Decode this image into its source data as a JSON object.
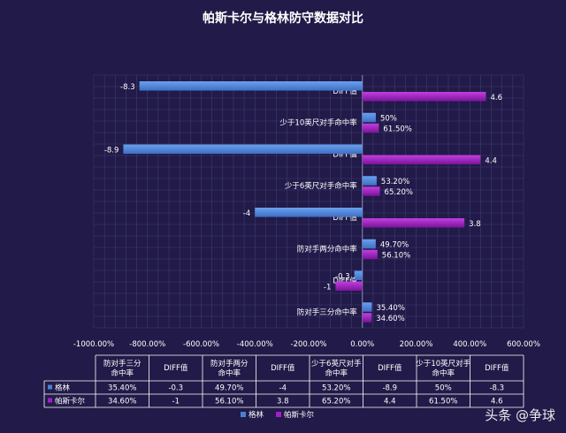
{
  "chart_data": {
    "type": "bar",
    "title": "帕斯卡尔与格林防守数据对比",
    "categories_bottom_to_top": [
      "防对手三分命中率",
      "DIFF值",
      "防对手两分命中率",
      "DIFF值",
      "少于6英尺对手命中率",
      "DIFF值",
      "少于10英尺对手命中率",
      "DIFF值"
    ],
    "categories_axis_labels": [
      "防对手三分命中率",
      "DIFF值",
      "防对手两分命中率",
      "DIFF值",
      "少于6英尺对手命中率",
      "DIFF值",
      "少于10英尺对手命中率",
      "DIFF值"
    ],
    "series": [
      {
        "name": "格林",
        "color": "#4a7fd4",
        "values": [
          35.4,
          -0.3,
          49.7,
          -4,
          53.2,
          -8.9,
          50,
          -8.3
        ],
        "labels": [
          "35.40%",
          "-0.3",
          "49.70%",
          "-4",
          "53.20%",
          "-8.9",
          "50%",
          "-8.3"
        ],
        "value_scale": [
          1,
          100,
          1,
          100,
          1,
          100,
          1,
          100
        ]
      },
      {
        "name": "帕斯卡尔",
        "color": "#a020c8",
        "values": [
          34.6,
          -1,
          56.1,
          3.8,
          65.2,
          4.4,
          61.5,
          4.6
        ],
        "labels": [
          "34.60%",
          "-1",
          "56.10%",
          "3.8",
          "65.20%",
          "4.4",
          "61.50%",
          "4.6"
        ],
        "value_scale": [
          1,
          100,
          1,
          100,
          1,
          100,
          1,
          100
        ]
      }
    ],
    "xlim": [
      -1000,
      600
    ],
    "x_ticks": [
      "-1000.00%",
      "-800.00%",
      "-600.00%",
      "-400.00%",
      "-200.00%",
      "0.00%",
      "200.00%",
      "400.00%",
      "600.00%"
    ],
    "x_tick_values": [
      -1000,
      -800,
      -600,
      -400,
      -200,
      0,
      200,
      400,
      600
    ],
    "grid": true,
    "legend": "bottom"
  },
  "table": {
    "headers": [
      "防对手三分命中率",
      "DIFF值",
      "防对手两分命中率",
      "DIFF值",
      "少于6英尺对手命中率",
      "DIFF值",
      "少于10英尺对手命中率",
      "DIFF值"
    ],
    "rows": [
      {
        "name": "格林",
        "cells": [
          "35.40%",
          "-0.3",
          "49.70%",
          "-4",
          "53.20%",
          "-8.9",
          "50%",
          "-8.3"
        ]
      },
      {
        "name": "帕斯卡尔",
        "cells": [
          "34.60%",
          "-1",
          "56.10%",
          "3.8",
          "65.20%",
          "4.4",
          "61.50%",
          "4.6"
        ]
      }
    ]
  },
  "watermark": "头条 @争球"
}
